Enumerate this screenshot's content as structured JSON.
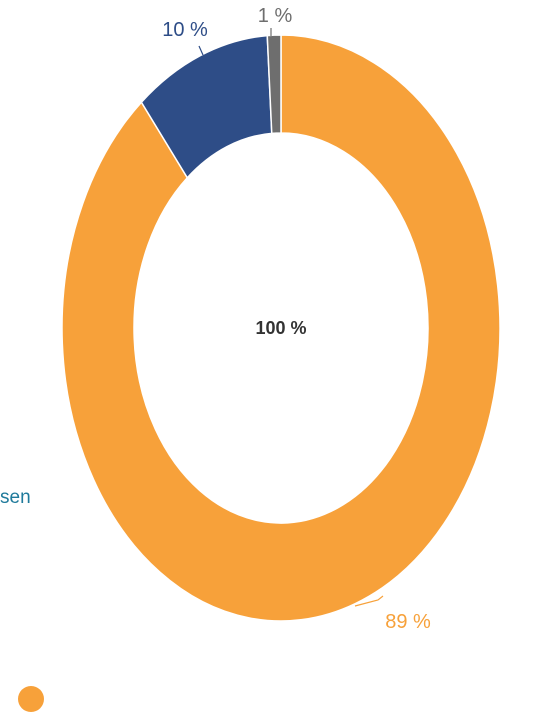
{
  "side_label": "sen",
  "chart_data": {
    "type": "pie",
    "variant": "donut",
    "center_label": "100 %",
    "slices": [
      {
        "value": 89,
        "label": "89 %",
        "color": "#F7A13A"
      },
      {
        "value": 10,
        "label": "10 %",
        "color": "#2E4D87"
      },
      {
        "value": 1,
        "label": "1 %",
        "color": "#6E6E6E"
      }
    ]
  },
  "legend": {
    "items": [
      {
        "color": "#F7A13A"
      }
    ]
  }
}
